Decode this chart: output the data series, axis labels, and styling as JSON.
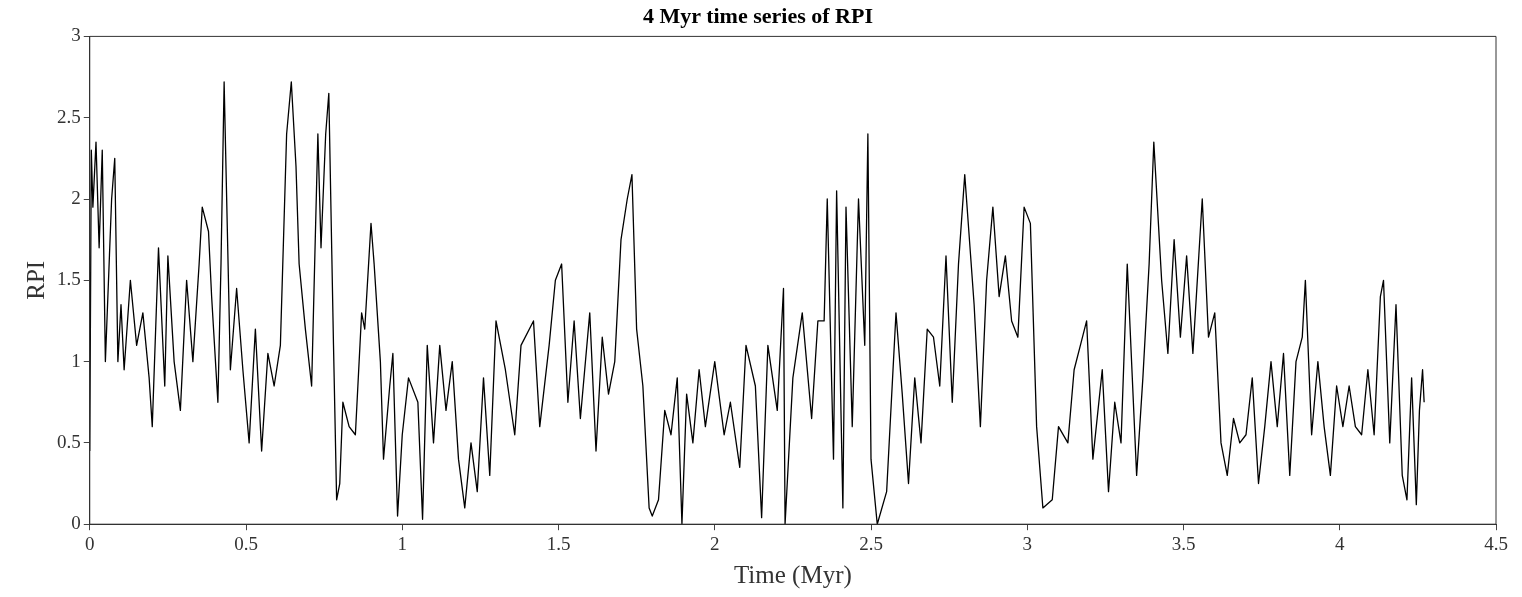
{
  "chart_data": {
    "type": "line",
    "title": "4 Myr time series of RPI",
    "xlabel": "Time (Myr)",
    "ylabel": "RPI",
    "xlim": [
      0,
      4.5
    ],
    "xticks": [
      0,
      0.5,
      1,
      1.5,
      2,
      2.5,
      3,
      3.5,
      4,
      4.5
    ],
    "ylim": [
      0,
      3
    ],
    "yticks": [
      0,
      0.5,
      1,
      1.5,
      2,
      2.5,
      3
    ],
    "grid": false,
    "legend": false,
    "marker": "none",
    "line_style": "solid",
    "series": [
      {
        "color": "#000000",
        "x": [
          0.0,
          0.005,
          0.01,
          0.02,
          0.03,
          0.04,
          0.05,
          0.07,
          0.08,
          0.09,
          0.1,
          0.11,
          0.13,
          0.15,
          0.17,
          0.19,
          0.2,
          0.22,
          0.24,
          0.25,
          0.27,
          0.29,
          0.31,
          0.33,
          0.35,
          0.36,
          0.38,
          0.39,
          0.41,
          0.42,
          0.43,
          0.45,
          0.47,
          0.49,
          0.51,
          0.53,
          0.55,
          0.57,
          0.59,
          0.61,
          0.63,
          0.645,
          0.66,
          0.67,
          0.69,
          0.71,
          0.73,
          0.74,
          0.755,
          0.765,
          0.78,
          0.79,
          0.8,
          0.81,
          0.83,
          0.85,
          0.87,
          0.88,
          0.9,
          0.91,
          0.93,
          0.94,
          0.96,
          0.97,
          0.985,
          1.0,
          1.02,
          1.05,
          1.065,
          1.08,
          1.1,
          1.12,
          1.14,
          1.16,
          1.18,
          1.2,
          1.22,
          1.24,
          1.26,
          1.28,
          1.3,
          1.33,
          1.36,
          1.38,
          1.42,
          1.44,
          1.47,
          1.49,
          1.51,
          1.53,
          1.55,
          1.57,
          1.6,
          1.62,
          1.64,
          1.66,
          1.68,
          1.7,
          1.72,
          1.735,
          1.75,
          1.77,
          1.79,
          1.8,
          1.82,
          1.84,
          1.86,
          1.88,
          1.895,
          1.91,
          1.93,
          1.95,
          1.97,
          2.0,
          2.03,
          2.05,
          2.08,
          2.1,
          2.13,
          2.15,
          2.17,
          2.2,
          2.22,
          2.225,
          2.25,
          2.28,
          2.31,
          2.33,
          2.35,
          2.36,
          2.38,
          2.39,
          2.41,
          2.42,
          2.44,
          2.46,
          2.48,
          2.49,
          2.5,
          2.52,
          2.55,
          2.58,
          2.6,
          2.62,
          2.64,
          2.66,
          2.68,
          2.7,
          2.72,
          2.74,
          2.76,
          2.78,
          2.8,
          2.83,
          2.85,
          2.87,
          2.89,
          2.91,
          2.93,
          2.95,
          2.97,
          2.99,
          3.01,
          3.03,
          3.05,
          3.08,
          3.1,
          3.13,
          3.15,
          3.17,
          3.19,
          3.21,
          3.24,
          3.26,
          3.28,
          3.3,
          3.32,
          3.35,
          3.37,
          3.39,
          3.405,
          3.43,
          3.45,
          3.47,
          3.49,
          3.51,
          3.53,
          3.56,
          3.58,
          3.6,
          3.62,
          3.64,
          3.66,
          3.68,
          3.7,
          3.72,
          3.74,
          3.76,
          3.78,
          3.8,
          3.82,
          3.84,
          3.86,
          3.88,
          3.89,
          3.91,
          3.93,
          3.95,
          3.97,
          3.99,
          4.01,
          4.03,
          4.05,
          4.07,
          4.09,
          4.11,
          4.13,
          4.14,
          4.16,
          4.18,
          4.2,
          4.215,
          4.23,
          4.245,
          4.255,
          4.265,
          4.27
        ],
        "values": [
          0.45,
          2.3,
          1.95,
          2.35,
          1.7,
          2.3,
          1.0,
          2.0,
          2.25,
          1.0,
          1.35,
          0.95,
          1.5,
          1.1,
          1.3,
          0.9,
          0.6,
          1.7,
          0.85,
          1.65,
          1.0,
          0.7,
          1.5,
          1.0,
          1.6,
          1.95,
          1.8,
          1.4,
          0.75,
          1.6,
          2.72,
          0.95,
          1.45,
          0.95,
          0.5,
          1.2,
          0.45,
          1.05,
          0.85,
          1.1,
          2.4,
          2.72,
          2.2,
          1.6,
          1.2,
          0.85,
          2.4,
          1.7,
          2.4,
          2.65,
          1.1,
          0.15,
          0.25,
          0.75,
          0.6,
          0.55,
          1.3,
          1.2,
          1.85,
          1.6,
          1.0,
          0.4,
          0.85,
          1.05,
          0.05,
          0.55,
          0.9,
          0.75,
          0.03,
          1.1,
          0.5,
          1.1,
          0.7,
          1.0,
          0.4,
          0.1,
          0.5,
          0.2,
          0.9,
          0.3,
          1.25,
          0.95,
          0.55,
          1.1,
          1.25,
          0.6,
          1.1,
          1.5,
          1.6,
          0.75,
          1.25,
          0.65,
          1.3,
          0.45,
          1.15,
          0.8,
          1.0,
          1.75,
          2.0,
          2.15,
          1.2,
          0.85,
          0.1,
          0.05,
          0.15,
          0.7,
          0.55,
          0.9,
          0.0,
          0.8,
          0.5,
          0.95,
          0.6,
          1.0,
          0.55,
          0.75,
          0.35,
          1.1,
          0.85,
          0.04,
          1.1,
          0.7,
          1.45,
          0.0,
          0.9,
          1.3,
          0.65,
          1.25,
          1.25,
          2.0,
          0.4,
          2.05,
          0.1,
          1.95,
          0.6,
          2.0,
          1.1,
          2.4,
          0.4,
          0.0,
          0.2,
          1.3,
          0.8,
          0.25,
          0.9,
          0.5,
          1.2,
          1.15,
          0.85,
          1.65,
          0.75,
          1.6,
          2.15,
          1.35,
          0.6,
          1.5,
          1.95,
          1.4,
          1.65,
          1.25,
          1.15,
          1.95,
          1.85,
          0.6,
          0.1,
          0.15,
          0.6,
          0.5,
          0.95,
          1.1,
          1.25,
          0.4,
          0.95,
          0.2,
          0.75,
          0.5,
          1.6,
          0.3,
          0.9,
          1.6,
          2.35,
          1.5,
          1.05,
          1.75,
          1.15,
          1.65,
          1.05,
          2.0,
          1.15,
          1.3,
          0.5,
          0.3,
          0.65,
          0.5,
          0.55,
          0.9,
          0.25,
          0.6,
          1.0,
          0.6,
          1.05,
          0.3,
          1.0,
          1.15,
          1.5,
          0.55,
          1.0,
          0.6,
          0.3,
          0.85,
          0.6,
          0.85,
          0.6,
          0.55,
          0.95,
          0.55,
          1.4,
          1.5,
          0.5,
          1.35,
          0.3,
          0.15,
          0.9,
          0.12,
          0.7,
          0.95,
          0.75
        ]
      }
    ]
  }
}
